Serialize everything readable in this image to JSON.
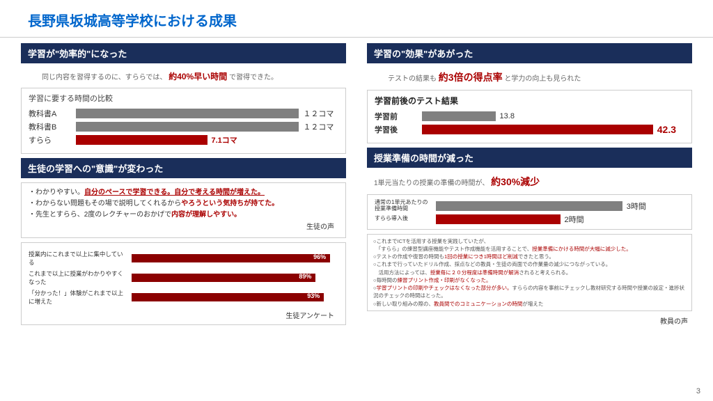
{
  "title": "長野県坂城高等学校における成果",
  "pageNumber": "3",
  "colors": {
    "headerBg": "#1a2e5a",
    "accent": "#0066cc",
    "red": "#aa0000",
    "gray": "#808080",
    "border": "#cccccc"
  },
  "left": {
    "sect1": {
      "header": "学習が\"効率的\"になった",
      "lead_pre": "同じ内容を習得するのに、すららでは、",
      "lead_em": "約40%早い時間",
      "lead_post": "で習得できた。",
      "chart": {
        "title": "学習に要する時間の比較",
        "rows": [
          {
            "label": "教科書A",
            "color": "gray",
            "value": "１２コマ",
            "pct": 85
          },
          {
            "label": "教科書B",
            "color": "gray",
            "value": "１２コマ",
            "pct": 85
          },
          {
            "label": "すらら",
            "color": "red",
            "value": "7.1コマ",
            "pct": 50,
            "valColor": "red"
          }
        ]
      }
    },
    "sect2": {
      "header": "生徒の学習への\"意識\"が変わった",
      "bullets": [
        {
          "pre": "・わかりやすい。",
          "red_u": "自分のペースで学習できる。自分で考える時間が増えた。",
          "post": ""
        },
        {
          "pre": "・わからない問題もその場で説明してくれるから",
          "red": "やろうという気持ちが持てた。",
          "post": ""
        },
        {
          "pre": "・先生とすらら、2度のレクチャーのおかげで",
          "red": "内容が理解しやすい。",
          "post": ""
        }
      ],
      "tag": "生徒の声",
      "survey": {
        "rows": [
          {
            "label": "授業内にこれまで以上に集中している",
            "pct": 96,
            "text": "96%"
          },
          {
            "label": "これまで以上に授業がわかりやすくなった",
            "pct": 89,
            "text": "89%"
          },
          {
            "label": "「分かった！」体験がこれまで以上に増えた",
            "pct": 93,
            "text": "93%"
          }
        ],
        "tag": "生徒アンケート"
      }
    }
  },
  "right": {
    "sect1": {
      "header": "学習の\"効果\"があがった",
      "lead_pre": "テストの結果も",
      "lead_em": "約3倍の得点率",
      "lead_post": "と学力の向上も見られた",
      "chart": {
        "title": "学習前後のテスト結果",
        "rows": [
          {
            "label": "学習前",
            "color": "gray",
            "value": "13.8",
            "pct": 28,
            "bold": true
          },
          {
            "label": "学習後",
            "color": "red",
            "value": "42.3",
            "pct": 88,
            "valColor": "red",
            "bold": true,
            "big": true
          }
        ]
      }
    },
    "sect2": {
      "header": "授業準備の時間が減った",
      "lead_pre": "1単元当たりの授業の準備の時間が、",
      "lead_em": "約30%減少",
      "chart": {
        "rows": [
          {
            "label": "通常の1単元あたりの授業準備時間",
            "color": "gray",
            "value": "3時間",
            "pct": 75
          },
          {
            "label": "すらら導入後",
            "color": "red",
            "value": "2時間",
            "pct": 50
          }
        ]
      },
      "notes": [
        {
          "t": "○これまでICTを活用する授業を実践していたが、"
        },
        {
          "t": "　「すらら」の練習型講座機能やテスト作成機能を活用することで、",
          "r": "授業準備にかける時間が大幅に減少した。"
        },
        {
          "t": "○テストの作成や復習の時間も",
          "r": "1回の授業につき1時間ほど削減",
          "t2": "できたと思う。"
        },
        {
          "t": "○これまで行っていたドリル作成、採点などの教員・生徒の両面での作業量の減少につながっている。"
        },
        {
          "t": "　活用方法によっては、",
          "r": "授業毎に２０分程度は準備時間が解消",
          "t2": "されると考えられる。"
        },
        {
          "t": "○毎時間の",
          "r": "練習プリント作成・印刷がなくなった。"
        },
        {
          "t": "○",
          "r": "学習プリントの印刷やチェックはなくなった部分が多い。",
          "t2": "すららの内容を事前にチェックし教材研究する時間や授業の設定・進捗状況のチェックの時間はとった。"
        },
        {
          "t": "○新しい取り組みの際の、",
          "r": "教員間でのコミュニケーションの時間",
          "t2": "が増えた"
        }
      ],
      "tag": "教員の声"
    }
  }
}
